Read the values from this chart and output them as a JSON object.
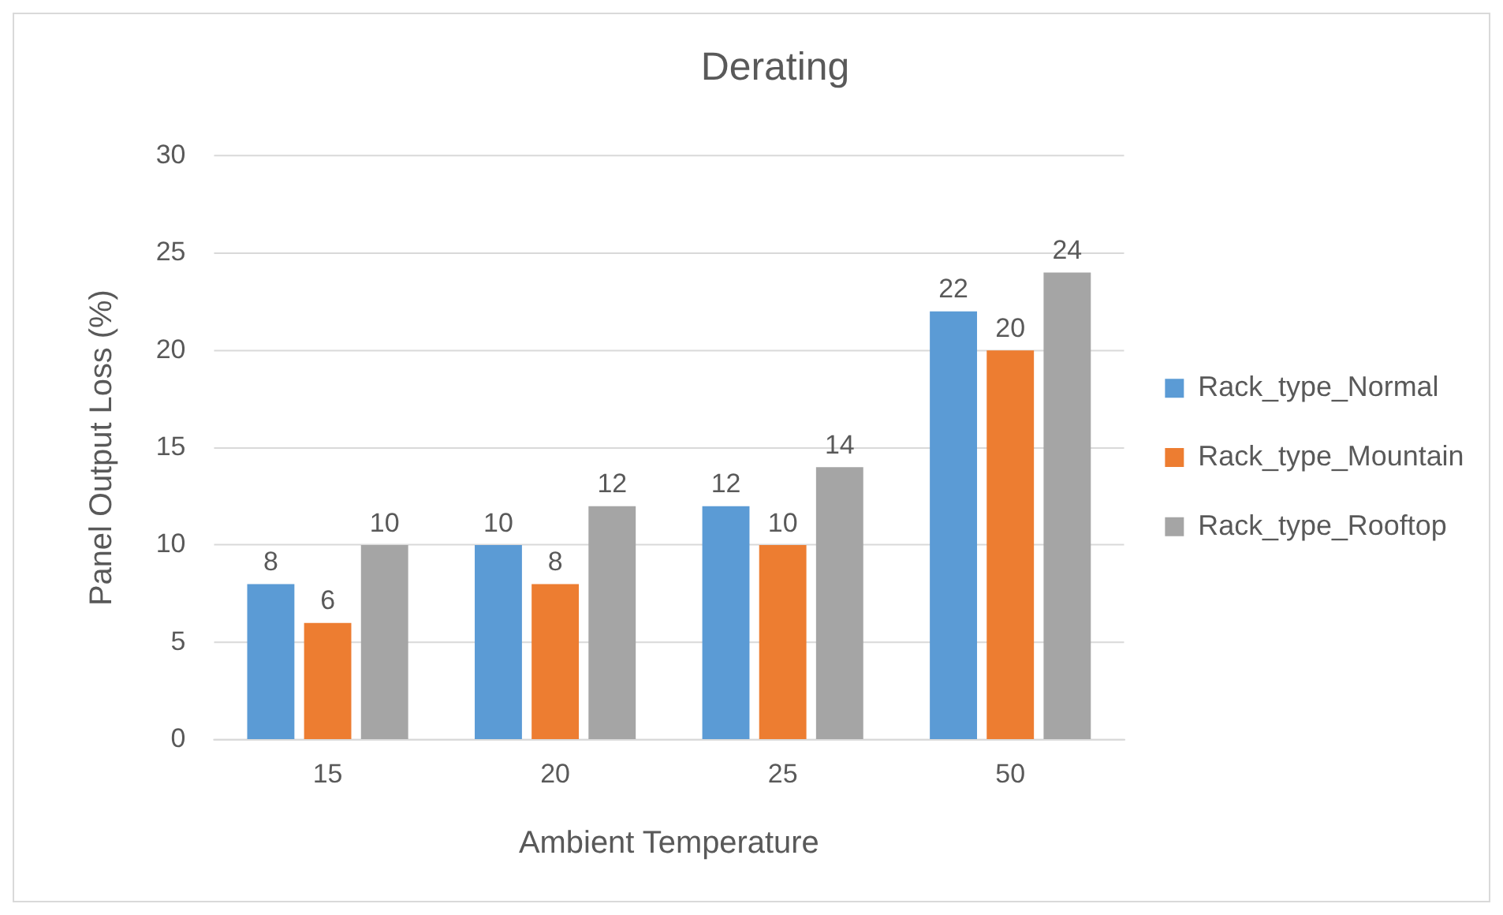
{
  "chart_data": {
    "type": "bar",
    "title": "Derating",
    "xlabel": "Ambient Temperature",
    "ylabel": "Panel Output Loss (%)",
    "categories": [
      "15",
      "20",
      "25",
      "50"
    ],
    "series": [
      {
        "name": "Rack_type_Normal",
        "color": "#5b9bd5",
        "values": [
          8,
          10,
          12,
          22
        ]
      },
      {
        "name": "Rack_type_Mountain",
        "color": "#ed7d31",
        "values": [
          6,
          8,
          10,
          20
        ]
      },
      {
        "name": "Rack_type_Rooftop",
        "color": "#a5a5a5",
        "values": [
          10,
          12,
          14,
          24
        ]
      }
    ],
    "ylim": [
      0,
      30
    ],
    "yticks": [
      0,
      5,
      10,
      15,
      20,
      25,
      30
    ],
    "grid": "y",
    "legend": "right",
    "data_labels": true
  }
}
